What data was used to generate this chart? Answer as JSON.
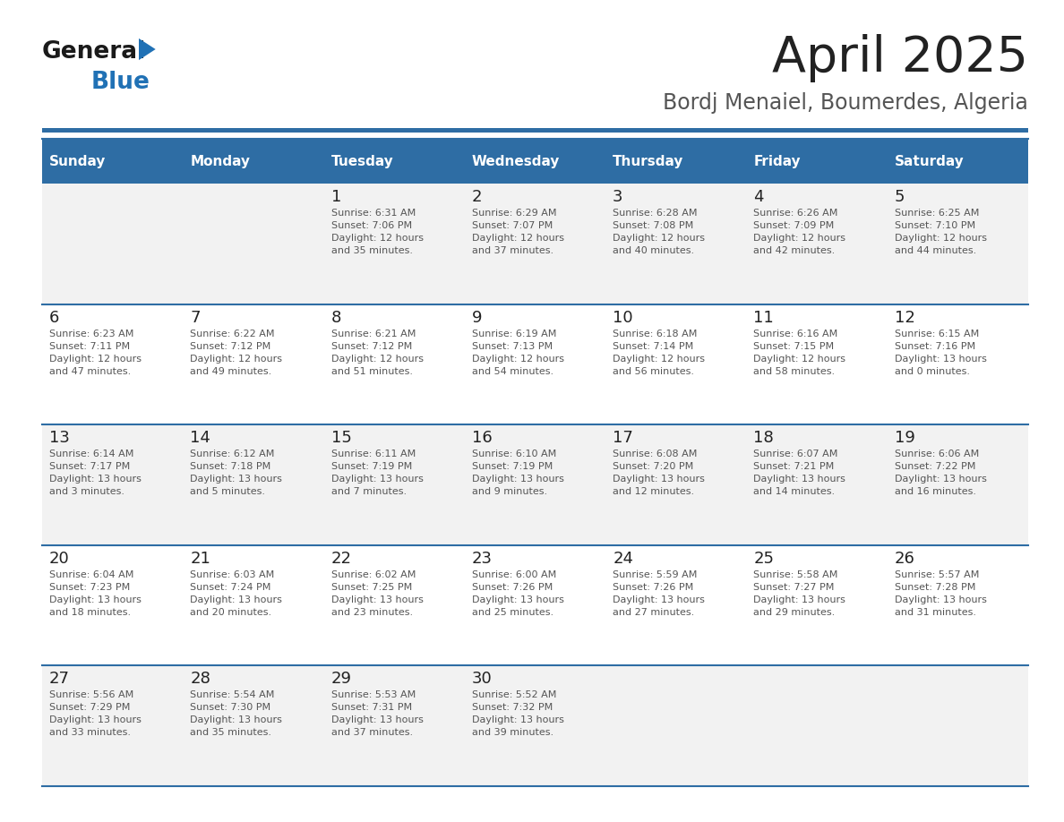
{
  "title": "April 2025",
  "subtitle": "Bordj Menaiel, Boumerdes, Algeria",
  "header_color": "#2E6DA4",
  "header_text_color": "#FFFFFF",
  "cell_bg_even": "#F2F2F2",
  "cell_bg_odd": "#FFFFFF",
  "day_headers": [
    "Sunday",
    "Monday",
    "Tuesday",
    "Wednesday",
    "Thursday",
    "Friday",
    "Saturday"
  ],
  "title_color": "#222222",
  "subtitle_color": "#555555",
  "day_number_color": "#222222",
  "cell_text_color": "#555555",
  "separator_color": "#2E6DA4",
  "logo_general_color": "#1a1a1a",
  "logo_blue_color": "#2071B5",
  "logo_triangle_color": "#2071B5",
  "weeks": [
    [
      {
        "day": null,
        "info": null
      },
      {
        "day": null,
        "info": null
      },
      {
        "day": 1,
        "info": "Sunrise: 6:31 AM\nSunset: 7:06 PM\nDaylight: 12 hours\nand 35 minutes."
      },
      {
        "day": 2,
        "info": "Sunrise: 6:29 AM\nSunset: 7:07 PM\nDaylight: 12 hours\nand 37 minutes."
      },
      {
        "day": 3,
        "info": "Sunrise: 6:28 AM\nSunset: 7:08 PM\nDaylight: 12 hours\nand 40 minutes."
      },
      {
        "day": 4,
        "info": "Sunrise: 6:26 AM\nSunset: 7:09 PM\nDaylight: 12 hours\nand 42 minutes."
      },
      {
        "day": 5,
        "info": "Sunrise: 6:25 AM\nSunset: 7:10 PM\nDaylight: 12 hours\nand 44 minutes."
      }
    ],
    [
      {
        "day": 6,
        "info": "Sunrise: 6:23 AM\nSunset: 7:11 PM\nDaylight: 12 hours\nand 47 minutes."
      },
      {
        "day": 7,
        "info": "Sunrise: 6:22 AM\nSunset: 7:12 PM\nDaylight: 12 hours\nand 49 minutes."
      },
      {
        "day": 8,
        "info": "Sunrise: 6:21 AM\nSunset: 7:12 PM\nDaylight: 12 hours\nand 51 minutes."
      },
      {
        "day": 9,
        "info": "Sunrise: 6:19 AM\nSunset: 7:13 PM\nDaylight: 12 hours\nand 54 minutes."
      },
      {
        "day": 10,
        "info": "Sunrise: 6:18 AM\nSunset: 7:14 PM\nDaylight: 12 hours\nand 56 minutes."
      },
      {
        "day": 11,
        "info": "Sunrise: 6:16 AM\nSunset: 7:15 PM\nDaylight: 12 hours\nand 58 minutes."
      },
      {
        "day": 12,
        "info": "Sunrise: 6:15 AM\nSunset: 7:16 PM\nDaylight: 13 hours\nand 0 minutes."
      }
    ],
    [
      {
        "day": 13,
        "info": "Sunrise: 6:14 AM\nSunset: 7:17 PM\nDaylight: 13 hours\nand 3 minutes."
      },
      {
        "day": 14,
        "info": "Sunrise: 6:12 AM\nSunset: 7:18 PM\nDaylight: 13 hours\nand 5 minutes."
      },
      {
        "day": 15,
        "info": "Sunrise: 6:11 AM\nSunset: 7:19 PM\nDaylight: 13 hours\nand 7 minutes."
      },
      {
        "day": 16,
        "info": "Sunrise: 6:10 AM\nSunset: 7:19 PM\nDaylight: 13 hours\nand 9 minutes."
      },
      {
        "day": 17,
        "info": "Sunrise: 6:08 AM\nSunset: 7:20 PM\nDaylight: 13 hours\nand 12 minutes."
      },
      {
        "day": 18,
        "info": "Sunrise: 6:07 AM\nSunset: 7:21 PM\nDaylight: 13 hours\nand 14 minutes."
      },
      {
        "day": 19,
        "info": "Sunrise: 6:06 AM\nSunset: 7:22 PM\nDaylight: 13 hours\nand 16 minutes."
      }
    ],
    [
      {
        "day": 20,
        "info": "Sunrise: 6:04 AM\nSunset: 7:23 PM\nDaylight: 13 hours\nand 18 minutes."
      },
      {
        "day": 21,
        "info": "Sunrise: 6:03 AM\nSunset: 7:24 PM\nDaylight: 13 hours\nand 20 minutes."
      },
      {
        "day": 22,
        "info": "Sunrise: 6:02 AM\nSunset: 7:25 PM\nDaylight: 13 hours\nand 23 minutes."
      },
      {
        "day": 23,
        "info": "Sunrise: 6:00 AM\nSunset: 7:26 PM\nDaylight: 13 hours\nand 25 minutes."
      },
      {
        "day": 24,
        "info": "Sunrise: 5:59 AM\nSunset: 7:26 PM\nDaylight: 13 hours\nand 27 minutes."
      },
      {
        "day": 25,
        "info": "Sunrise: 5:58 AM\nSunset: 7:27 PM\nDaylight: 13 hours\nand 29 minutes."
      },
      {
        "day": 26,
        "info": "Sunrise: 5:57 AM\nSunset: 7:28 PM\nDaylight: 13 hours\nand 31 minutes."
      }
    ],
    [
      {
        "day": 27,
        "info": "Sunrise: 5:56 AM\nSunset: 7:29 PM\nDaylight: 13 hours\nand 33 minutes."
      },
      {
        "day": 28,
        "info": "Sunrise: 5:54 AM\nSunset: 7:30 PM\nDaylight: 13 hours\nand 35 minutes."
      },
      {
        "day": 29,
        "info": "Sunrise: 5:53 AM\nSunset: 7:31 PM\nDaylight: 13 hours\nand 37 minutes."
      },
      {
        "day": 30,
        "info": "Sunrise: 5:52 AM\nSunset: 7:32 PM\nDaylight: 13 hours\nand 39 minutes."
      },
      {
        "day": null,
        "info": null
      },
      {
        "day": null,
        "info": null
      },
      {
        "day": null,
        "info": null
      }
    ]
  ]
}
